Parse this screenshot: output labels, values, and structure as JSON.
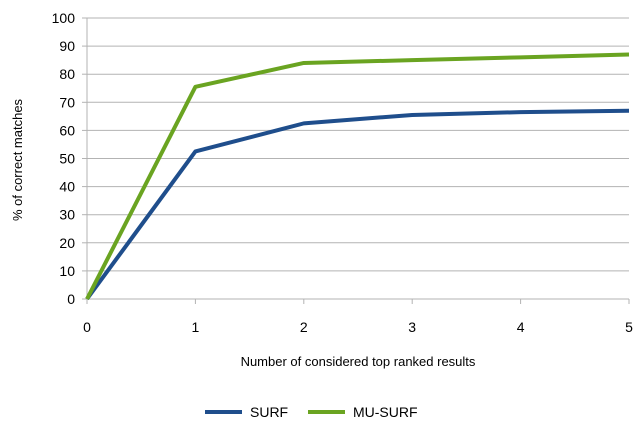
{
  "chart_data": {
    "type": "line",
    "title": "",
    "xlabel": "Number of considered top ranked results",
    "ylabel": "% of correct matches",
    "x": [
      0,
      1,
      2,
      3,
      4,
      5
    ],
    "xlim": [
      0,
      5
    ],
    "ylim": [
      0,
      100
    ],
    "y_ticks": [
      0,
      10,
      20,
      30,
      40,
      50,
      60,
      70,
      80,
      90,
      100
    ],
    "x_ticks": [
      0,
      1,
      2,
      3,
      4,
      5
    ],
    "grid": "horizontal",
    "legend_position": "bottom",
    "series": [
      {
        "name": "SURF",
        "color": "#1f4e8c",
        "values": [
          0,
          52.5,
          62.5,
          65.5,
          66.5,
          67
        ]
      },
      {
        "name": "MU-SURF",
        "color": "#6aa421",
        "values": [
          0,
          75.5,
          84,
          85,
          86,
          87
        ]
      }
    ]
  }
}
